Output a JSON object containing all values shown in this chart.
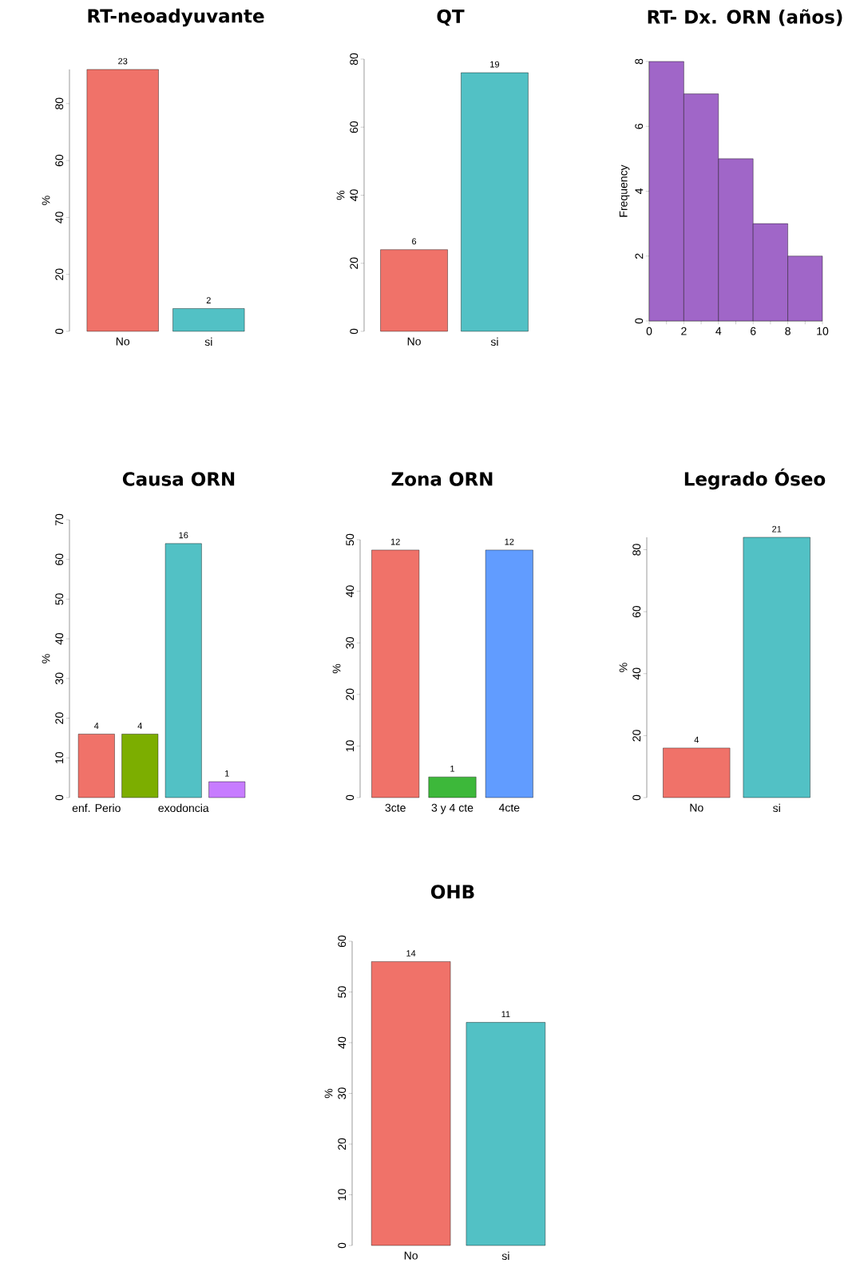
{
  "chart_data": [
    {
      "type": "bar",
      "title": "RT-neoadyuvante",
      "ylabel": "%",
      "categories": [
        "No",
        "si"
      ],
      "values": [
        92,
        8
      ],
      "colors": [
        "#F07269",
        "#52C1C5"
      ],
      "annotations": [
        {
          "text": "23",
          "x": "No",
          "y": 92
        },
        {
          "text": "2",
          "x": "si",
          "y": 8
        }
      ],
      "ylim": [
        0,
        92
      ],
      "yticks": [
        0,
        20,
        40,
        60,
        80
      ]
    },
    {
      "type": "bar",
      "title": "QT",
      "ylabel": "%",
      "categories": [
        "No",
        "si"
      ],
      "values": [
        24,
        76
      ],
      "colors": [
        "#F07269",
        "#52C1C5"
      ],
      "annotations": [
        {
          "text": "6",
          "x": "No",
          "y": 24
        },
        {
          "text": "19",
          "x": "si",
          "y": 76
        }
      ],
      "ylim": [
        0,
        80
      ],
      "yticks": [
        0,
        20,
        40,
        60,
        80
      ]
    },
    {
      "type": "histogram",
      "title": "RT- Dx. ORN (años)",
      "ylabel": "Frequency",
      "bins": [
        0,
        2,
        4,
        6,
        8,
        10
      ],
      "values": [
        8,
        7,
        5,
        3,
        2
      ],
      "color": "#A066C8",
      "xlim": [
        0,
        10
      ],
      "ylim": [
        0,
        8
      ],
      "xticks": [
        0,
        {
          "value": 1,
          "label": null
        },
        2,
        {
          "value": 3,
          "label": null
        },
        4,
        {
          "value": 5,
          "label": null
        },
        6,
        {
          "value": 7,
          "label": null
        },
        8,
        {
          "value": 9,
          "label": null
        },
        10
      ],
      "yticks": [
        0,
        2,
        4,
        6,
        8
      ]
    },
    {
      "type": "bar",
      "title": "Causa ORN",
      "ylabel": "%",
      "categories": [
        "enf. Perio",
        null,
        "exodoncia",
        null
      ],
      "values": [
        16,
        16,
        64,
        4
      ],
      "colors": [
        "#F07269",
        "#7CAE00",
        "#52C1C5",
        "#C77CFF"
      ],
      "annotations": [
        {
          "text": "4",
          "x": "enf. Perio",
          "y": 16
        },
        {
          "text": "4",
          "y": 16
        },
        {
          "text": "16",
          "x": "exodoncia",
          "y": 64
        },
        {
          "text": "1",
          "y": 4
        }
      ],
      "ylim": [
        0,
        70
      ],
      "yticks": [
        0,
        10,
        20,
        30,
        40,
        50,
        60,
        70
      ]
    },
    {
      "type": "bar",
      "title": "Zona ORN",
      "ylabel": "%",
      "categories": [
        "3cte",
        "3 y 4 cte",
        "4cte"
      ],
      "values": [
        48,
        4,
        48
      ],
      "colors": [
        "#F07269",
        "#3DB83A",
        "#619CFF"
      ],
      "annotations": [
        {
          "text": "12",
          "x": "3cte",
          "y": 48
        },
        {
          "text": "1",
          "x": "3 y 4 cte",
          "y": 4
        },
        {
          "text": "12",
          "x": "4cte",
          "y": 48
        }
      ],
      "ylim": [
        0,
        50
      ],
      "yticks": [
        0,
        10,
        20,
        30,
        40,
        50
      ]
    },
    {
      "type": "bar",
      "title": "Legrado Óseo",
      "ylabel": "%",
      "categories": [
        "No",
        "si"
      ],
      "values": [
        16,
        84
      ],
      "colors": [
        "#F07269",
        "#52C1C5"
      ],
      "annotations": [
        {
          "text": "4",
          "x": "No",
          "y": 16
        },
        {
          "text": "21",
          "x": "si",
          "y": 84
        }
      ],
      "ylim": [
        0,
        84
      ],
      "yticks": [
        0,
        20,
        40,
        60,
        80
      ]
    },
    {
      "type": "bar",
      "title": "OHB",
      "ylabel": "%",
      "categories": [
        "No",
        "si"
      ],
      "values": [
        56,
        44
      ],
      "colors": [
        "#F07269",
        "#52C1C5"
      ],
      "annotations": [
        {
          "text": "14",
          "x": "No",
          "y": 56
        },
        {
          "text": "11",
          "x": "si",
          "y": 44
        }
      ],
      "ylim": [
        0,
        60
      ],
      "yticks": [
        0,
        10,
        20,
        30,
        40,
        50,
        60
      ]
    }
  ]
}
